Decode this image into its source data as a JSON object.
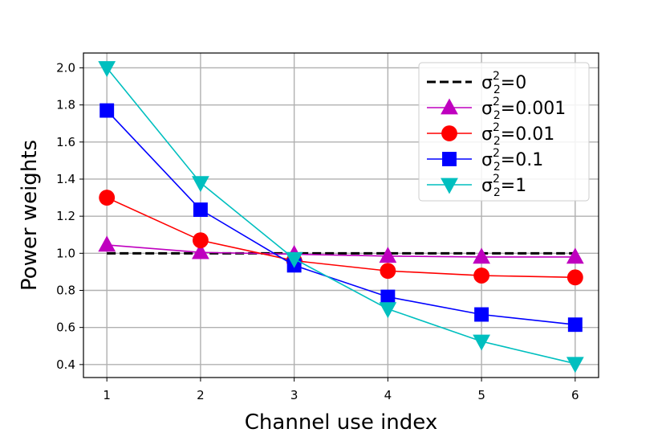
{
  "chart_data": {
    "type": "line",
    "xlabel": "Channel use index",
    "ylabel": "Power weights",
    "x": [
      1,
      2,
      3,
      4,
      5,
      6
    ],
    "xlim": [
      0.75,
      6.25
    ],
    "ylim": [
      0.33,
      2.08
    ],
    "xticks": [
      1,
      2,
      3,
      4,
      5,
      6
    ],
    "yticks": [
      0.4,
      0.6,
      0.8,
      1.0,
      1.2,
      1.4,
      1.6,
      1.8,
      2.0
    ],
    "grid": true,
    "legend_position": "top-right",
    "series": [
      {
        "sigma_symbol": "σ",
        "sub": "2",
        "sup": "2",
        "value_text": "=0",
        "color": "#000000",
        "marker": "none",
        "dash": true,
        "values": [
          1.0,
          1.0,
          1.0,
          1.0,
          1.0,
          1.0
        ]
      },
      {
        "sigma_symbol": "σ",
        "sub": "2",
        "sup": "2",
        "value_text": "=0.001",
        "color": "#bf00bf",
        "marker": "triangle-up",
        "dash": false,
        "values": [
          1.045,
          1.005,
          0.995,
          0.985,
          0.98,
          0.98
        ]
      },
      {
        "sigma_symbol": "σ",
        "sub": "2",
        "sup": "2",
        "value_text": "=0.01",
        "color": "#ff0000",
        "marker": "circle",
        "dash": false,
        "values": [
          1.3,
          1.07,
          0.96,
          0.905,
          0.88,
          0.87
        ]
      },
      {
        "sigma_symbol": "σ",
        "sub": "2",
        "sup": "2",
        "value_text": "=0.1",
        "color": "#0000ff",
        "marker": "square",
        "dash": false,
        "values": [
          1.77,
          1.235,
          0.935,
          0.765,
          0.67,
          0.615
        ]
      },
      {
        "sigma_symbol": "σ",
        "sub": "2",
        "sup": "2",
        "value_text": "=1",
        "color": "#00bfbf",
        "marker": "triangle-down",
        "dash": false,
        "values": [
          2.0,
          1.38,
          0.97,
          0.7,
          0.525,
          0.405
        ]
      }
    ]
  }
}
